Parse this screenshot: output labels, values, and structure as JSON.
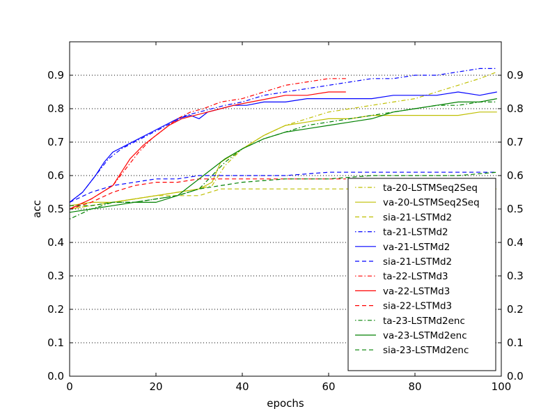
{
  "chart_data": {
    "type": "line",
    "xlabel": "epochs",
    "ylabel": "acc",
    "xlim": [
      0,
      100
    ],
    "ylim": [
      0,
      1.0
    ],
    "xticks": [
      "0",
      "20",
      "40",
      "60",
      "80",
      "100"
    ],
    "yticks": [
      "0.0",
      "0.1",
      "0.2",
      "0.3",
      "0.4",
      "0.5",
      "0.6",
      "0.7",
      "0.8",
      "0.9"
    ],
    "grid": "horizontal dotted at y ticks",
    "legend_position": "lower-right",
    "series": [
      {
        "name": "ta-20-LSTMSeq2Seq",
        "color": "#bfbf00",
        "style": "dashdot",
        "x": [
          0,
          5,
          10,
          15,
          20,
          25,
          30,
          33,
          36,
          40,
          45,
          50,
          55,
          60,
          65,
          70,
          75,
          80,
          85,
          90,
          95,
          99
        ],
        "y": [
          0.5,
          0.51,
          0.52,
          0.53,
          0.54,
          0.55,
          0.56,
          0.57,
          0.63,
          0.68,
          0.72,
          0.75,
          0.77,
          0.79,
          0.8,
          0.81,
          0.82,
          0.83,
          0.85,
          0.87,
          0.89,
          0.91
        ]
      },
      {
        "name": "va-20-LSTMSeq2Seq",
        "color": "#bfbf00",
        "style": "solid",
        "x": [
          0,
          5,
          10,
          15,
          20,
          25,
          30,
          33,
          35,
          40,
          45,
          50,
          55,
          60,
          65,
          70,
          75,
          80,
          85,
          90,
          95,
          99
        ],
        "y": [
          0.51,
          0.52,
          0.52,
          0.53,
          0.54,
          0.55,
          0.56,
          0.58,
          0.64,
          0.68,
          0.72,
          0.75,
          0.76,
          0.77,
          0.77,
          0.78,
          0.78,
          0.78,
          0.78,
          0.78,
          0.79,
          0.79
        ]
      },
      {
        "name": "sia-21-LSTMd2",
        "color": "#bfbf00",
        "style": "dashed",
        "x": [
          0,
          5,
          10,
          15,
          20,
          25,
          30,
          35,
          99
        ],
        "y": [
          0.5,
          0.51,
          0.52,
          0.53,
          0.54,
          0.54,
          0.54,
          0.56,
          0.56
        ]
      },
      {
        "name": "ta-21-LSTMd2",
        "color": "#0000ff",
        "style": "dashdot",
        "x": [
          0,
          3,
          6,
          9,
          12,
          15,
          18,
          21,
          24,
          27,
          30,
          33,
          36,
          40,
          45,
          50,
          55,
          60,
          65,
          70,
          75,
          80,
          85,
          90,
          95,
          99
        ],
        "y": [
          0.52,
          0.55,
          0.6,
          0.65,
          0.68,
          0.7,
          0.72,
          0.74,
          0.76,
          0.78,
          0.79,
          0.8,
          0.81,
          0.82,
          0.84,
          0.85,
          0.86,
          0.87,
          0.88,
          0.89,
          0.89,
          0.9,
          0.9,
          0.91,
          0.92,
          0.92
        ]
      },
      {
        "name": "va-21-LSTMd2",
        "color": "#0000ff",
        "style": "solid",
        "x": [
          0,
          3,
          6,
          8,
          10,
          13,
          16,
          19,
          22,
          25,
          28,
          30,
          32,
          35,
          38,
          41,
          45,
          50,
          55,
          60,
          65,
          70,
          75,
          80,
          85,
          90,
          95,
          99
        ],
        "y": [
          0.52,
          0.55,
          0.6,
          0.64,
          0.67,
          0.69,
          0.71,
          0.73,
          0.75,
          0.77,
          0.78,
          0.77,
          0.79,
          0.8,
          0.81,
          0.81,
          0.82,
          0.82,
          0.83,
          0.83,
          0.83,
          0.83,
          0.84,
          0.84,
          0.84,
          0.85,
          0.84,
          0.85
        ]
      },
      {
        "name": "sia-21-LSTMd2",
        "color": "#0000ff",
        "style": "dashed",
        "x": [
          0,
          5,
          10,
          15,
          20,
          25,
          30,
          35,
          40,
          50,
          60,
          70,
          80,
          90,
          99
        ],
        "y": [
          0.52,
          0.55,
          0.57,
          0.58,
          0.59,
          0.59,
          0.6,
          0.6,
          0.6,
          0.6,
          0.61,
          0.61,
          0.61,
          0.61,
          0.61
        ]
      },
      {
        "name": "ta-22-LSTMd3",
        "color": "#ff0000",
        "style": "dashdot",
        "x": [
          0,
          5,
          10,
          13,
          16,
          19,
          22,
          25,
          28,
          31,
          35,
          40,
          45,
          50,
          55,
          60,
          64
        ],
        "y": [
          0.5,
          0.53,
          0.57,
          0.62,
          0.67,
          0.71,
          0.74,
          0.77,
          0.79,
          0.8,
          0.82,
          0.83,
          0.85,
          0.87,
          0.88,
          0.89,
          0.89
        ]
      },
      {
        "name": "va-22-LSTMd3",
        "color": "#ff0000",
        "style": "solid",
        "x": [
          0,
          5,
          10,
          12,
          14,
          17,
          20,
          23,
          26,
          29,
          32,
          35,
          38,
          42,
          46,
          50,
          55,
          60,
          64
        ],
        "y": [
          0.5,
          0.53,
          0.57,
          0.61,
          0.65,
          0.69,
          0.72,
          0.75,
          0.77,
          0.78,
          0.79,
          0.8,
          0.81,
          0.82,
          0.83,
          0.84,
          0.84,
          0.85,
          0.85
        ]
      },
      {
        "name": "sia-22-LSTMd3",
        "color": "#ff0000",
        "style": "dashed",
        "x": [
          0,
          5,
          10,
          15,
          20,
          25,
          30,
          35,
          40,
          50,
          60,
          64
        ],
        "y": [
          0.5,
          0.52,
          0.55,
          0.57,
          0.58,
          0.58,
          0.59,
          0.59,
          0.59,
          0.59,
          0.59,
          0.59
        ]
      },
      {
        "name": "ta-23-LSTMd2enc",
        "color": "#008000",
        "style": "dashdot",
        "x": [
          0,
          5,
          10,
          15,
          20,
          25,
          30,
          33,
          36,
          40,
          45,
          50,
          55,
          60,
          65,
          70,
          75,
          80,
          85,
          90,
          95,
          99
        ],
        "y": [
          0.47,
          0.5,
          0.52,
          0.52,
          0.53,
          0.54,
          0.56,
          0.6,
          0.64,
          0.68,
          0.71,
          0.73,
          0.75,
          0.76,
          0.77,
          0.78,
          0.79,
          0.8,
          0.81,
          0.81,
          0.82,
          0.82
        ]
      },
      {
        "name": "va-23-LSTMd2enc",
        "color": "#008000",
        "style": "solid",
        "x": [
          0,
          5,
          10,
          15,
          20,
          25,
          28,
          30,
          33,
          36,
          40,
          45,
          50,
          55,
          60,
          65,
          70,
          75,
          80,
          85,
          90,
          95,
          99
        ],
        "y": [
          0.49,
          0.5,
          0.51,
          0.52,
          0.52,
          0.54,
          0.57,
          0.59,
          0.62,
          0.65,
          0.68,
          0.71,
          0.73,
          0.74,
          0.75,
          0.76,
          0.77,
          0.79,
          0.8,
          0.81,
          0.82,
          0.82,
          0.83
        ]
      },
      {
        "name": "sia-23-LSTMd2enc",
        "color": "#008000",
        "style": "dashed",
        "x": [
          0,
          5,
          10,
          15,
          20,
          25,
          30,
          35,
          40,
          50,
          60,
          70,
          80,
          90,
          99
        ],
        "y": [
          0.51,
          0.51,
          0.52,
          0.52,
          0.53,
          0.54,
          0.56,
          0.57,
          0.58,
          0.59,
          0.59,
          0.6,
          0.6,
          0.6,
          0.61
        ]
      }
    ]
  }
}
